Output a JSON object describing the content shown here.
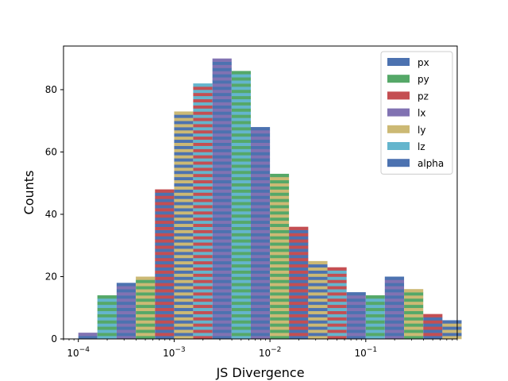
{
  "chart_data": {
    "type": "bar",
    "stacked": true,
    "histogram": true,
    "title": "",
    "xlabel": "JS Divergence",
    "ylabel": "Counts",
    "xscale": "log",
    "xlim": [
      7e-05,
      0.9
    ],
    "ylim": [
      0,
      94
    ],
    "yticks": [
      0,
      20,
      40,
      60,
      80
    ],
    "xticks": [
      {
        "value": 0.0001,
        "base": "10",
        "exp": "−4"
      },
      {
        "value": 0.001,
        "base": "10",
        "exp": "−3"
      },
      {
        "value": 0.01,
        "base": "10",
        "exp": "−2"
      },
      {
        "value": 0.1,
        "base": "10",
        "exp": "−1"
      }
    ],
    "bin_edges": [
      0.0001,
      0.000158,
      0.000251,
      0.000398,
      0.000631,
      0.001,
      0.00158,
      0.00251,
      0.00398,
      0.00631,
      0.01,
      0.0158,
      0.0251,
      0.0398,
      0.0631,
      0.1,
      0.158,
      0.251,
      0.398,
      0.631
    ],
    "bin_totals": [
      2,
      14,
      18,
      20,
      48,
      73,
      82,
      90,
      86,
      68,
      53,
      36,
      25,
      23,
      15,
      14,
      20,
      16,
      8,
      6
    ],
    "legend_position": "upper right",
    "series": [
      {
        "name": "px",
        "color": "#4C72B0"
      },
      {
        "name": "py",
        "color": "#55A868"
      },
      {
        "name": "pz",
        "color": "#C44E52"
      },
      {
        "name": "lx",
        "color": "#8172B2"
      },
      {
        "name": "ly",
        "color": "#CCB974"
      },
      {
        "name": "lz",
        "color": "#64B5CD"
      },
      {
        "name": "alpha",
        "color": "#4C72B0"
      }
    ]
  }
}
